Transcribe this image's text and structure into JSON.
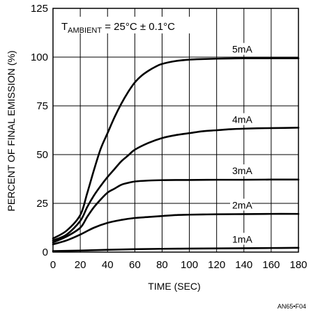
{
  "chart_data": {
    "type": "line",
    "xlabel": "TIME (SEC)",
    "ylabel": "PERCENT OF FINAL EMISSION (%)",
    "xlim": [
      0,
      180
    ],
    "ylim": [
      0,
      125
    ],
    "xticks": [
      "0",
      "20",
      "40",
      "60",
      "80",
      "100",
      "120",
      "140",
      "160",
      "180"
    ],
    "yticks": [
      "0",
      "25",
      "50",
      "75",
      "100",
      "125"
    ],
    "grid": true,
    "annotation": {
      "prefix": "T",
      "subscript": "AMBIENT",
      "suffix": " = 25°C ± 0.1°C"
    },
    "series": [
      {
        "name": "5mA",
        "x": [
          0,
          10,
          20,
          25,
          30,
          35,
          40,
          45,
          50,
          55,
          60,
          65,
          70,
          75,
          80,
          90,
          100,
          110,
          120,
          130,
          140,
          150,
          160,
          170,
          180
        ],
        "y": [
          7,
          11,
          19,
          30,
          42,
          53,
          61,
          69,
          76,
          82,
          87,
          90.5,
          93,
          95,
          96.5,
          98,
          98.7,
          99,
          99.2,
          99.3,
          99.4,
          99.4,
          99.4,
          99.4,
          99.4
        ]
      },
      {
        "name": "4mA",
        "x": [
          0,
          10,
          20,
          25,
          30,
          35,
          40,
          45,
          50,
          55,
          60,
          70,
          80,
          90,
          100,
          110,
          120,
          130,
          140,
          150,
          160,
          170,
          180
        ],
        "y": [
          6,
          9,
          16,
          23,
          29,
          34,
          38.5,
          42.5,
          46.5,
          49.5,
          52.5,
          56,
          58.5,
          60,
          61,
          62,
          62.5,
          63,
          63.3,
          63.5,
          63.6,
          63.7,
          63.8
        ]
      },
      {
        "name": "3mA",
        "x": [
          0,
          10,
          20,
          25,
          30,
          35,
          40,
          45,
          50,
          55,
          60,
          70,
          80,
          90,
          100,
          120,
          140,
          160,
          180
        ],
        "y": [
          5,
          8,
          12.5,
          18,
          23,
          27,
          30.5,
          32.5,
          34.5,
          35.5,
          36.2,
          36.7,
          36.9,
          37,
          37,
          37.1,
          37.1,
          37.2,
          37.2
        ]
      },
      {
        "name": "2mA",
        "x": [
          0,
          10,
          20,
          30,
          40,
          50,
          60,
          70,
          80,
          90,
          100,
          110,
          120,
          140,
          160,
          180
        ],
        "y": [
          4,
          6,
          9,
          12.5,
          15,
          16.5,
          17.5,
          18,
          18.5,
          19,
          19.2,
          19.3,
          19.4,
          19.5,
          19.6,
          19.6
        ]
      },
      {
        "name": "1mA",
        "x": [
          0,
          20,
          40,
          60,
          80,
          100,
          120,
          140,
          160,
          180
        ],
        "y": [
          0.5,
          0.8,
          1.2,
          1.5,
          1.7,
          1.8,
          1.9,
          2,
          2.1,
          2.2
        ]
      }
    ]
  },
  "figure_id": "AN65•F04"
}
